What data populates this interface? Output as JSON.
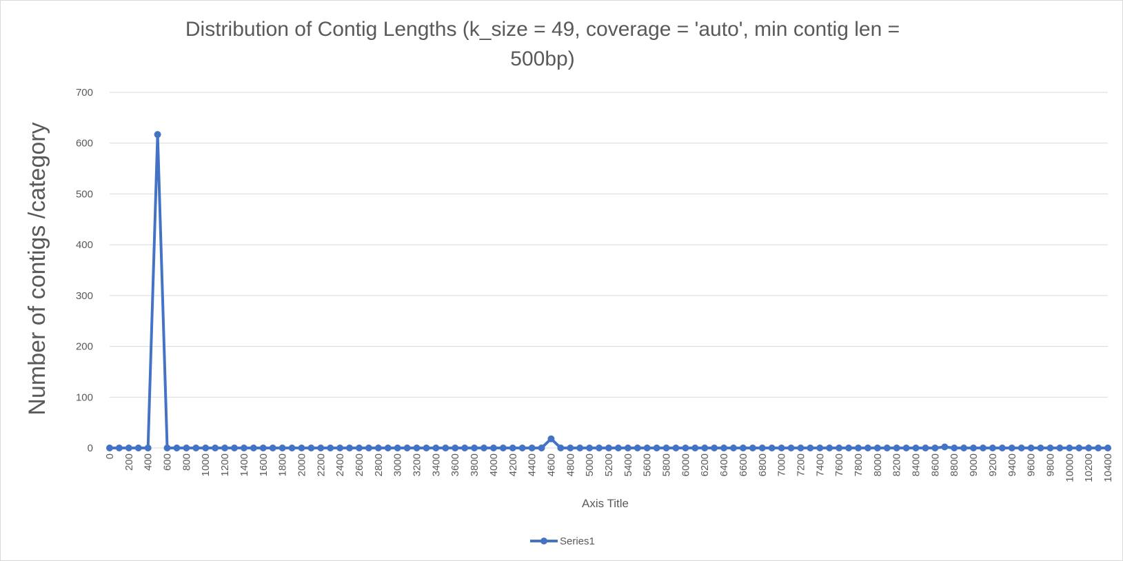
{
  "chart_data": {
    "type": "line",
    "title_lines": [
      "Distribution of Contig Lengths (k_size = 49, coverage = 'auto', min contig len =",
      "500bp)"
    ],
    "xlabel": "Axis Title",
    "ylabel": "Number of contigs /category",
    "ylim": [
      0,
      700
    ],
    "y_ticks": [
      0,
      100,
      200,
      300,
      400,
      500,
      600,
      700
    ],
    "x_tick_step": 200,
    "x": [
      0,
      100,
      200,
      300,
      400,
      500,
      600,
      700,
      800,
      900,
      1000,
      1100,
      1200,
      1300,
      1400,
      1500,
      1600,
      1700,
      1800,
      1900,
      2000,
      2100,
      2200,
      2300,
      2400,
      2500,
      2600,
      2700,
      2800,
      2900,
      3000,
      3100,
      3200,
      3300,
      3400,
      3500,
      3600,
      3700,
      3800,
      3900,
      4000,
      4100,
      4200,
      4300,
      4400,
      4500,
      4600,
      4700,
      4800,
      4900,
      5000,
      5100,
      5200,
      5300,
      5400,
      5500,
      5600,
      5700,
      5800,
      5900,
      6000,
      6100,
      6200,
      6300,
      6400,
      6500,
      6600,
      6700,
      6800,
      6900,
      7000,
      7100,
      7200,
      7300,
      7400,
      7500,
      7600,
      7700,
      7800,
      7900,
      8000,
      8100,
      8200,
      8300,
      8400,
      8500,
      8600,
      8700,
      8800,
      8900,
      9000,
      9100,
      9200,
      9300,
      9400,
      9500,
      9600,
      9700,
      9800,
      9900,
      10000,
      10100,
      10200,
      10300,
      10400
    ],
    "series": [
      {
        "name": "Series1",
        "values": [
          0,
          0,
          0,
          0,
          0,
          617,
          0,
          0,
          0,
          0,
          0,
          0,
          0,
          0,
          0,
          0,
          0,
          0,
          0,
          0,
          0,
          0,
          0,
          0,
          0,
          0,
          0,
          0,
          0,
          0,
          0,
          0,
          0,
          0,
          0,
          0,
          0,
          0,
          0,
          0,
          0,
          0,
          0,
          0,
          0,
          0,
          18,
          0,
          0,
          0,
          0,
          0,
          0,
          0,
          0,
          0,
          0,
          0,
          0,
          0,
          0,
          0,
          0,
          0,
          0,
          0,
          0,
          0,
          0,
          0,
          0,
          0,
          0,
          0,
          0,
          0,
          0,
          0,
          0,
          0,
          0,
          0,
          0,
          0,
          0,
          0,
          0,
          2,
          0,
          0,
          0,
          0,
          0,
          0,
          0,
          0,
          0,
          0,
          0,
          0,
          0,
          0,
          0,
          0,
          0
        ]
      }
    ],
    "grid": true,
    "legend_position": "bottom",
    "colors": {
      "series": "#4472c4",
      "grid": "#d9d9d9",
      "text": "#595959"
    }
  }
}
